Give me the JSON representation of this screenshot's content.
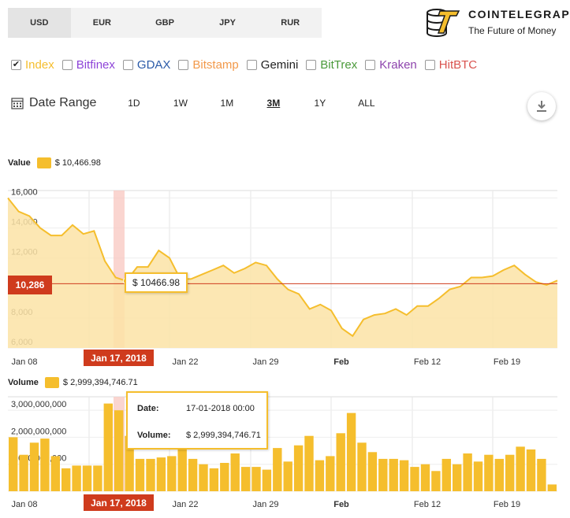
{
  "currencies": [
    {
      "label": "USD",
      "active": true
    },
    {
      "label": "EUR",
      "active": false
    },
    {
      "label": "GBP",
      "active": false
    },
    {
      "label": "JPY",
      "active": false
    },
    {
      "label": "RUR",
      "active": false
    }
  ],
  "brand": {
    "title": "COINTELEGRAPH",
    "subtitle": "The Future of Money",
    "accent": "#f5be2d"
  },
  "exchanges": [
    {
      "label": "Index",
      "checked": true,
      "color": "#f5be2d"
    },
    {
      "label": "Bitfinex",
      "checked": false,
      "color": "#8e44d8"
    },
    {
      "label": "GDAX",
      "checked": false,
      "color": "#2a5aa8"
    },
    {
      "label": "Bitstamp",
      "checked": false,
      "color": "#f2994a"
    },
    {
      "label": "Gemini",
      "checked": false,
      "color": "#222222"
    },
    {
      "label": "BitTrex",
      "checked": false,
      "color": "#4a9a3a"
    },
    {
      "label": "Kraken",
      "checked": false,
      "color": "#8e44ad"
    },
    {
      "label": "HitBTC",
      "checked": false,
      "color": "#d9534f"
    }
  ],
  "date_range": {
    "label": "Date Range",
    "options": [
      {
        "label": "1D",
        "active": false
      },
      {
        "label": "1W",
        "active": false
      },
      {
        "label": "1M",
        "active": false
      },
      {
        "label": "3M",
        "active": true
      },
      {
        "label": "1Y",
        "active": false
      },
      {
        "label": "ALL",
        "active": false
      }
    ],
    "download_icon": "download-icon"
  },
  "value_legend": {
    "title": "Value",
    "value": "$ 10,466.98"
  },
  "volume_legend": {
    "title": "Volume",
    "value": "$ 2,999,394,746.71"
  },
  "current_value_label": "10,286",
  "price_tooltip": "$ 10466.98",
  "date_flag": "Jan 17, 2018",
  "volume_tooltip": {
    "date_key": "Date:",
    "date_val": "17-01-2018 00:00",
    "volume_key": "Volume:",
    "volume_val": "$ 2,999,394,746.71"
  },
  "chart_data": [
    {
      "type": "area",
      "title": "Value",
      "x_labels": [
        "Jan 08",
        "Jan 22",
        "Jan 29",
        "Feb",
        "Feb 12",
        "Feb 19"
      ],
      "highlight_x": "Jan 17, 2018",
      "y_ticks": [
        "6,000",
        "8,000",
        "10,000",
        "12,000",
        "14,000",
        "16,000"
      ],
      "ylim": [
        6000,
        16500
      ],
      "reference_line": 10286,
      "values": [
        16000,
        15100,
        14800,
        14000,
        13500,
        13500,
        14200,
        13600,
        13800,
        11800,
        10700,
        10467,
        11400,
        11400,
        12500,
        12000,
        10600,
        10600,
        10900,
        11200,
        11500,
        11000,
        11300,
        11700,
        11500,
        10600,
        9900,
        9600,
        8600,
        8900,
        8500,
        7300,
        6800,
        7900,
        8200,
        8300,
        8600,
        8200,
        8800,
        8800,
        9300,
        9900,
        10100,
        10700,
        10700,
        10800,
        11200,
        11500,
        10900,
        10400,
        10200,
        10500
      ],
      "color": "#f5be2d"
    },
    {
      "type": "bar",
      "title": "Volume",
      "x_labels": [
        "Jan 08",
        "Jan 22",
        "Jan 29",
        "Feb",
        "Feb 12",
        "Feb 19"
      ],
      "highlight_x": "Jan 17, 2018",
      "y_ticks": [
        "0",
        "1,000,000,000",
        "2,000,000,000",
        "3,000,000,000"
      ],
      "ylim": [
        0,
        3500000000
      ],
      "values": [
        2000000000,
        1350000000,
        1800000000,
        1950000000,
        1300000000,
        850000000,
        950000000,
        950000000,
        950000000,
        3250000000,
        2999394746,
        2050000000,
        1200000000,
        1200000000,
        1250000000,
        1300000000,
        1700000000,
        1200000000,
        1000000000,
        850000000,
        1050000000,
        1400000000,
        900000000,
        900000000,
        800000000,
        1600000000,
        1100000000,
        1700000000,
        2050000000,
        1150000000,
        1300000000,
        2150000000,
        2900000000,
        1800000000,
        1450000000,
        1200000000,
        1200000000,
        1150000000,
        900000000,
        1000000000,
        750000000,
        1200000000,
        1000000000,
        1400000000,
        1100000000,
        1350000000,
        1200000000,
        1350000000,
        1650000000,
        1550000000,
        1200000000,
        250000000
      ],
      "color": "#f5be2d"
    }
  ]
}
